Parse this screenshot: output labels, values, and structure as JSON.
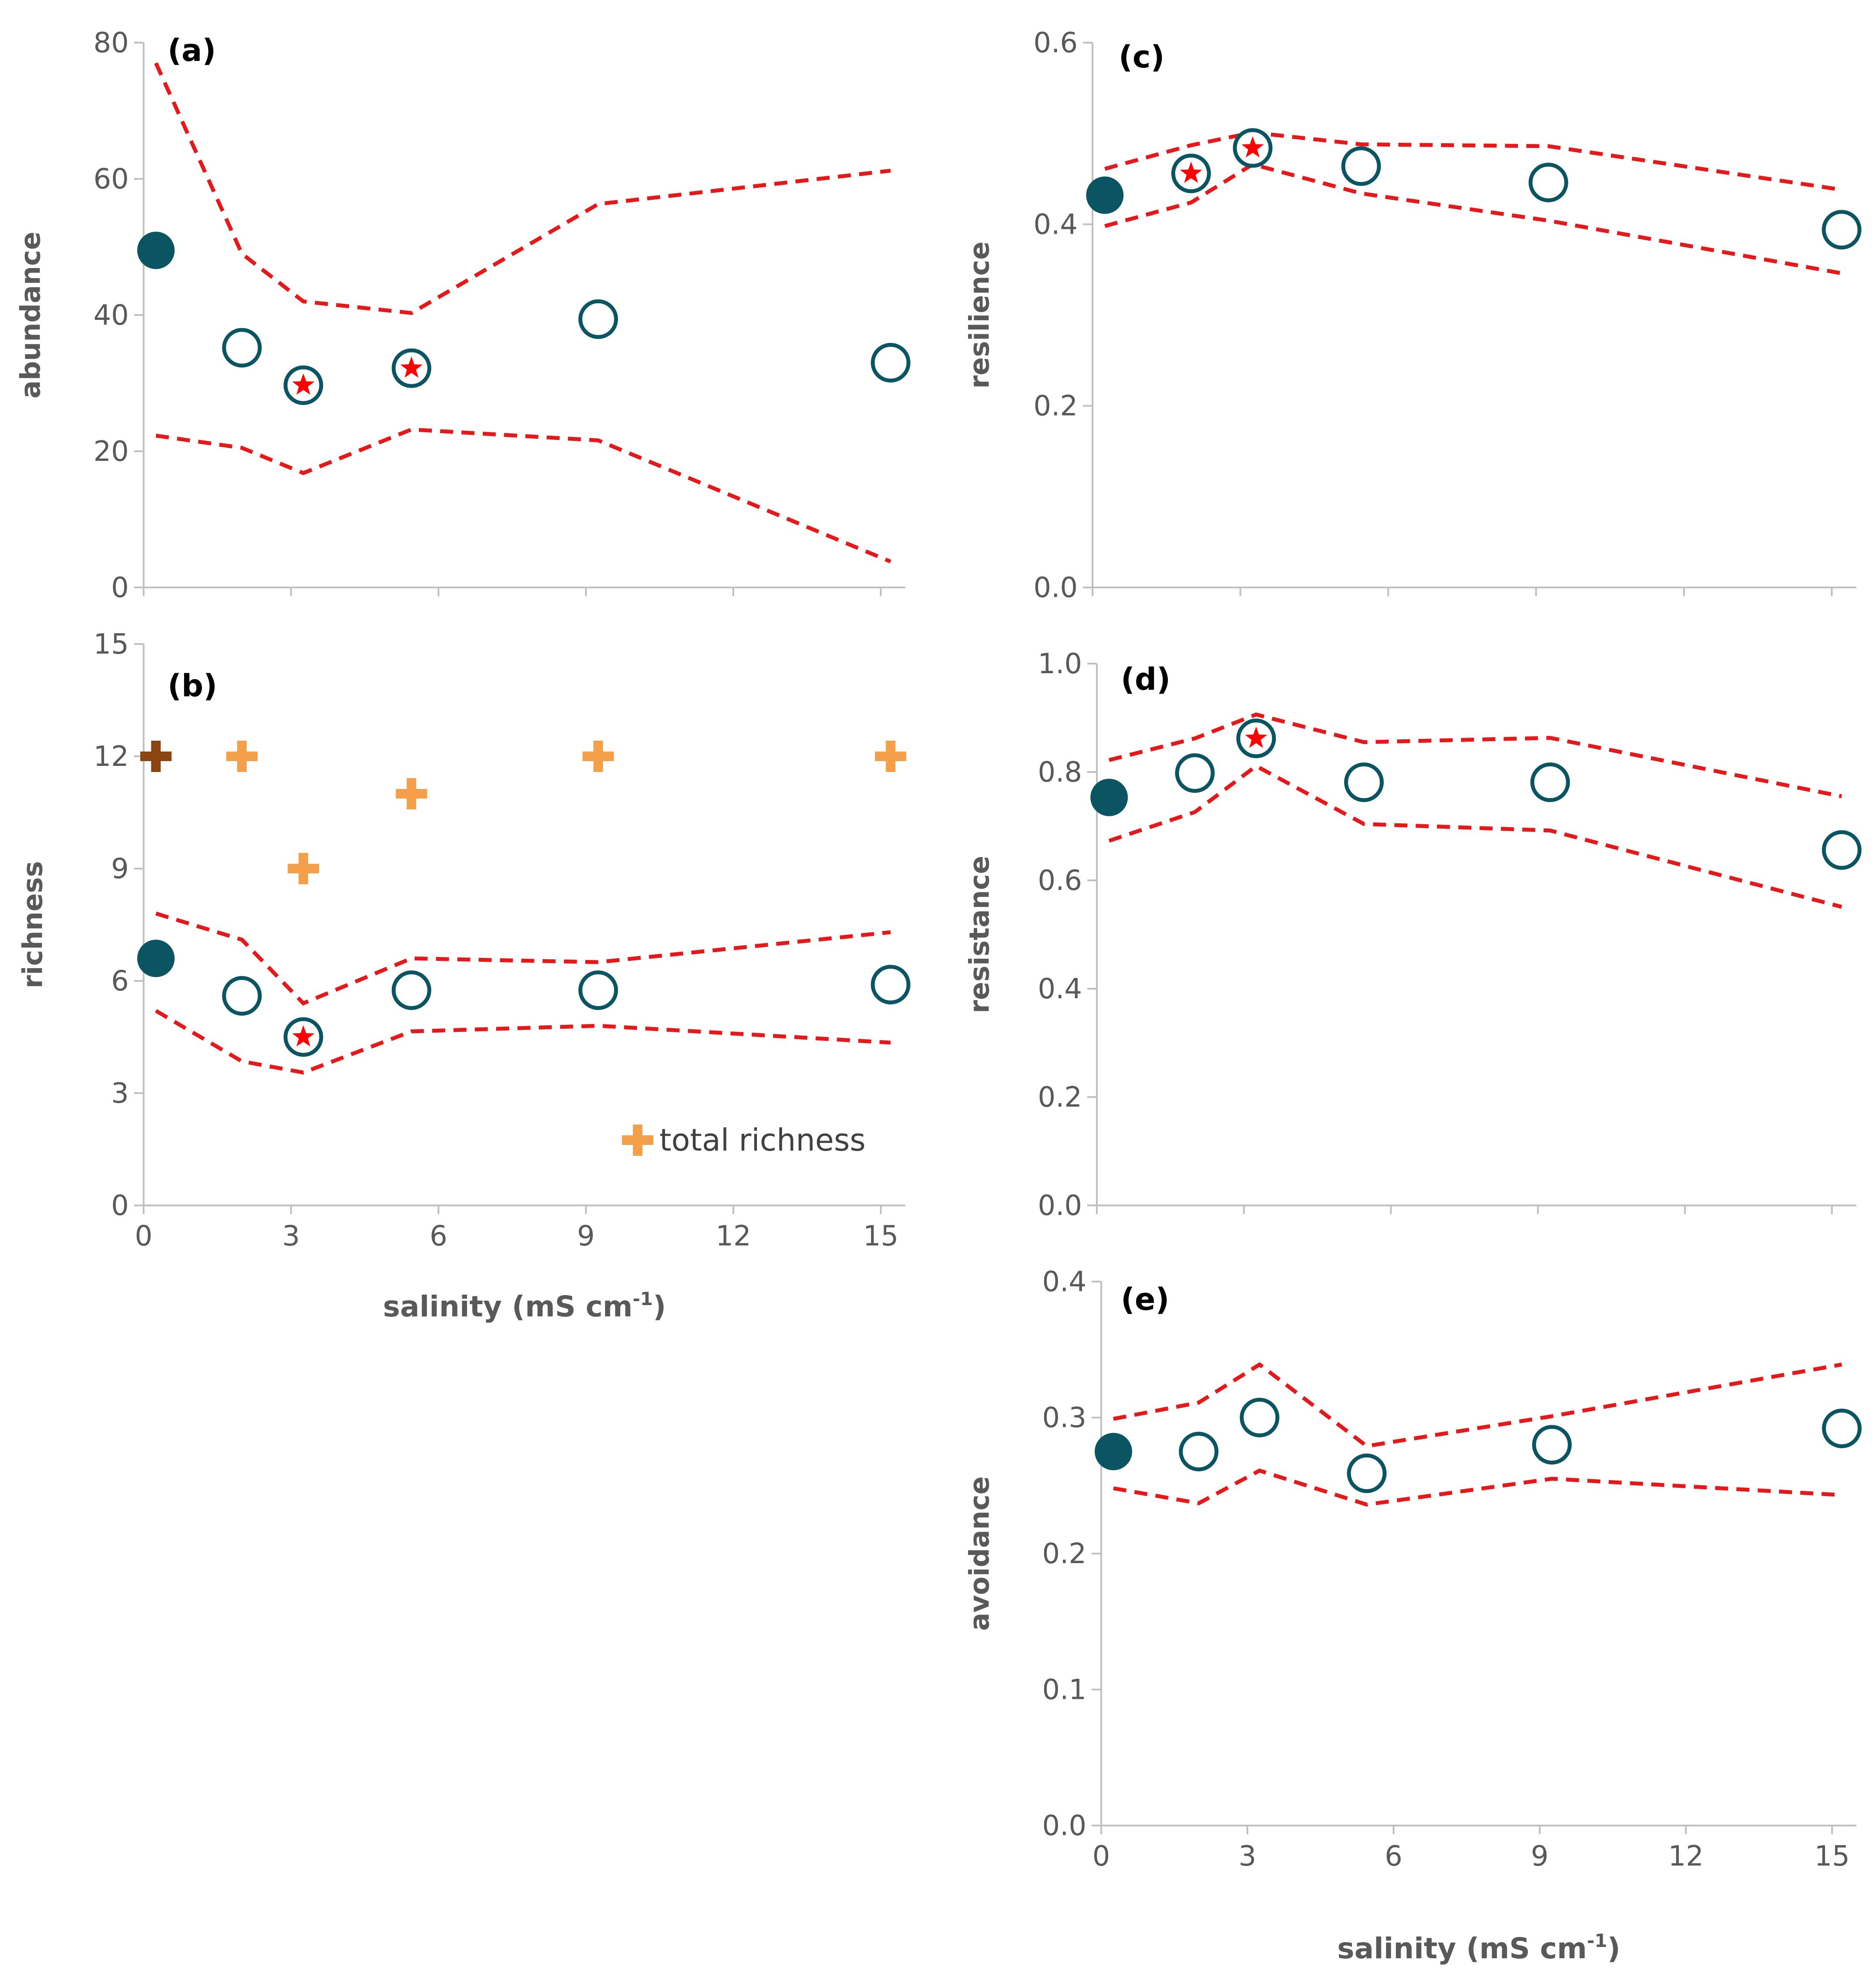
{
  "colors": {
    "marker": "#0b5563",
    "band": "#e31a1c",
    "star": "#ff0000",
    "total_richness": "#f4a04a",
    "total_richness_reference": "#8b4513",
    "axis": "#bfbfbf",
    "text": "#595959"
  },
  "chart_data": [
    {
      "id": "a",
      "panel_label": "(a)",
      "type": "scatter",
      "ylabel": "abundance",
      "xlabel": "",
      "xlim": [
        0,
        15.5
      ],
      "ylim": [
        0,
        80
      ],
      "xticks": [],
      "yticks": [
        0,
        20,
        40,
        60,
        80
      ],
      "points": [
        {
          "x": 0.25,
          "y": 49.5,
          "filled": true,
          "star": false
        },
        {
          "x": 2.0,
          "y": 35.2,
          "filled": false,
          "star": false
        },
        {
          "x": 3.25,
          "y": 29.7,
          "filled": false,
          "star": true
        },
        {
          "x": 5.45,
          "y": 32.2,
          "filled": false,
          "star": true
        },
        {
          "x": 9.25,
          "y": 39.4,
          "filled": false,
          "star": false
        },
        {
          "x": 15.2,
          "y": 33.0,
          "filled": false,
          "star": false
        }
      ],
      "upper": [
        [
          0.25,
          77
        ],
        [
          2.0,
          49
        ],
        [
          3.25,
          42
        ],
        [
          5.45,
          40.3
        ],
        [
          9.25,
          56.3
        ],
        [
          15.2,
          61.2
        ]
      ],
      "lower": [
        [
          0.25,
          22.3
        ],
        [
          2.0,
          20.5
        ],
        [
          3.25,
          16.8
        ],
        [
          5.45,
          23.2
        ],
        [
          9.25,
          21.6
        ],
        [
          15.2,
          3.8
        ]
      ]
    },
    {
      "id": "b",
      "panel_label": "(b)",
      "type": "scatter",
      "ylabel": "richness",
      "xlabel": "salinity (mS cm",
      "xlabel_sup": "-1",
      "xlabel_end": ")",
      "xlim": [
        0,
        15.5
      ],
      "ylim": [
        0,
        15
      ],
      "xticks": [
        0,
        3,
        6,
        9,
        12,
        15
      ],
      "yticks": [
        0,
        3,
        6,
        9,
        12,
        15
      ],
      "points": [
        {
          "x": 0.25,
          "y": 6.6,
          "filled": true,
          "star": false
        },
        {
          "x": 2.0,
          "y": 5.6,
          "filled": false,
          "star": false
        },
        {
          "x": 3.25,
          "y": 4.5,
          "filled": false,
          "star": true
        },
        {
          "x": 5.45,
          "y": 5.75,
          "filled": false,
          "star": false
        },
        {
          "x": 9.25,
          "y": 5.75,
          "filled": false,
          "star": false
        },
        {
          "x": 15.2,
          "y": 5.9,
          "filled": false,
          "star": false
        }
      ],
      "upper": [
        [
          0.25,
          7.8
        ],
        [
          2.0,
          7.1
        ],
        [
          3.25,
          5.4
        ],
        [
          5.45,
          6.6
        ],
        [
          9.25,
          6.5
        ],
        [
          15.2,
          7.3
        ]
      ],
      "lower": [
        [
          0.25,
          5.2
        ],
        [
          2.0,
          3.85
        ],
        [
          3.25,
          3.55
        ],
        [
          5.45,
          4.65
        ],
        [
          9.25,
          4.8
        ],
        [
          15.2,
          4.35
        ]
      ],
      "total_richness": [
        {
          "x": 0.25,
          "y": 12,
          "reference": true
        },
        {
          "x": 2.0,
          "y": 12,
          "reference": false
        },
        {
          "x": 3.25,
          "y": 9,
          "reference": false
        },
        {
          "x": 5.45,
          "y": 11,
          "reference": false
        },
        {
          "x": 9.25,
          "y": 12,
          "reference": false
        },
        {
          "x": 15.2,
          "y": 12,
          "reference": false
        }
      ],
      "legend": "total richness"
    },
    {
      "id": "c",
      "panel_label": "(c)",
      "type": "scatter",
      "ylabel": "resilience",
      "xlabel": "",
      "xlim": [
        0,
        15.5
      ],
      "ylim": [
        0,
        0.6
      ],
      "xticks": [],
      "yticks": [
        "0.0",
        "0.2",
        "0.4",
        "0.6"
      ],
      "points": [
        {
          "x": 0.25,
          "y": 0.432,
          "filled": true,
          "star": false
        },
        {
          "x": 2.0,
          "y": 0.456,
          "filled": false,
          "star": true
        },
        {
          "x": 3.25,
          "y": 0.484,
          "filled": false,
          "star": true
        },
        {
          "x": 5.45,
          "y": 0.464,
          "filled": false,
          "star": false
        },
        {
          "x": 9.25,
          "y": 0.446,
          "filled": false,
          "star": false
        },
        {
          "x": 15.2,
          "y": 0.394,
          "filled": false,
          "star": false
        }
      ],
      "upper": [
        [
          0.25,
          0.461
        ],
        [
          2.0,
          0.487
        ],
        [
          3.25,
          0.501
        ],
        [
          5.45,
          0.488
        ],
        [
          9.25,
          0.486
        ],
        [
          15.2,
          0.438
        ]
      ],
      "lower": [
        [
          0.25,
          0.398
        ],
        [
          2.0,
          0.424
        ],
        [
          3.25,
          0.466
        ],
        [
          5.45,
          0.434
        ],
        [
          9.25,
          0.404
        ],
        [
          15.2,
          0.346
        ]
      ]
    },
    {
      "id": "d",
      "panel_label": "(d)",
      "type": "scatter",
      "ylabel": "resistance",
      "xlabel": "",
      "xlim": [
        0,
        15.5
      ],
      "ylim": [
        0,
        1.0
      ],
      "xticks": [],
      "yticks": [
        "0.0",
        "0.2",
        "0.4",
        "0.6",
        "0.8",
        "1.0"
      ],
      "points": [
        {
          "x": 0.25,
          "y": 0.753,
          "filled": true,
          "star": false
        },
        {
          "x": 2.0,
          "y": 0.798,
          "filled": false,
          "star": false
        },
        {
          "x": 3.25,
          "y": 0.862,
          "filled": false,
          "star": true
        },
        {
          "x": 5.45,
          "y": 0.781,
          "filled": false,
          "star": false
        },
        {
          "x": 9.25,
          "y": 0.781,
          "filled": false,
          "star": false
        },
        {
          "x": 15.2,
          "y": 0.656,
          "filled": false,
          "star": false
        }
      ],
      "upper": [
        [
          0.25,
          0.822
        ],
        [
          2.0,
          0.862
        ],
        [
          3.25,
          0.906
        ],
        [
          5.45,
          0.855
        ],
        [
          9.25,
          0.863
        ],
        [
          15.2,
          0.755
        ]
      ],
      "lower": [
        [
          0.25,
          0.673
        ],
        [
          2.0,
          0.726
        ],
        [
          3.25,
          0.811
        ],
        [
          5.45,
          0.704
        ],
        [
          9.25,
          0.692
        ],
        [
          15.2,
          0.551
        ]
      ]
    },
    {
      "id": "e",
      "panel_label": "(e)",
      "type": "scatter",
      "ylabel": "avoidance",
      "xlabel": "salinity (mS cm",
      "xlabel_sup": "-1",
      "xlabel_end": ")",
      "xlim": [
        0,
        15.5
      ],
      "ylim": [
        0,
        0.4
      ],
      "xticks": [
        0,
        3,
        6,
        9,
        12,
        15
      ],
      "yticks": [
        "0.0",
        "0.1",
        "0.2",
        "0.3",
        "0.4"
      ],
      "points": [
        {
          "x": 0.25,
          "y": 0.275,
          "filled": true,
          "star": false
        },
        {
          "x": 2.0,
          "y": 0.275,
          "filled": false,
          "star": false
        },
        {
          "x": 3.25,
          "y": 0.3,
          "filled": false,
          "star": false
        },
        {
          "x": 5.45,
          "y": 0.259,
          "filled": false,
          "star": false
        },
        {
          "x": 9.25,
          "y": 0.28,
          "filled": false,
          "star": false
        },
        {
          "x": 15.2,
          "y": 0.292,
          "filled": false,
          "star": false
        }
      ],
      "upper": [
        [
          0.25,
          0.299
        ],
        [
          2.0,
          0.311
        ],
        [
          3.25,
          0.339
        ],
        [
          5.45,
          0.279
        ],
        [
          9.25,
          0.301
        ],
        [
          15.2,
          0.339
        ]
      ],
      "lower": [
        [
          0.25,
          0.248
        ],
        [
          2.0,
          0.237
        ],
        [
          3.25,
          0.261
        ],
        [
          5.45,
          0.236
        ],
        [
          9.25,
          0.255
        ],
        [
          15.2,
          0.243
        ]
      ]
    }
  ]
}
